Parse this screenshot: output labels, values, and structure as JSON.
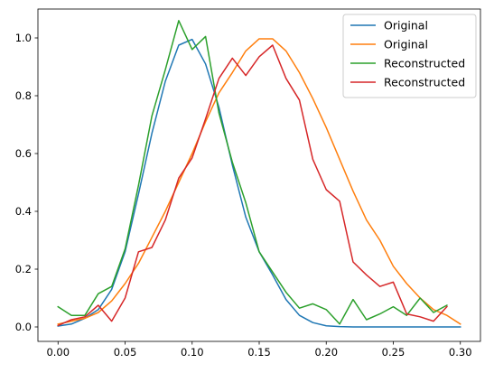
{
  "chart_data": {
    "type": "line",
    "title": "",
    "xlabel": "",
    "ylabel": "",
    "xlim": [
      -0.015,
      0.315
    ],
    "ylim": [
      -0.05,
      1.1
    ],
    "xticks": [
      0.0,
      0.05,
      0.1,
      0.15,
      0.2,
      0.25,
      0.3
    ],
    "xtick_labels": [
      "0.00",
      "0.05",
      "0.10",
      "0.15",
      "0.20",
      "0.25",
      "0.30"
    ],
    "yticks": [
      0.0,
      0.2,
      0.4,
      0.6,
      0.8,
      1.0
    ],
    "ytick_labels": [
      "0.0",
      "0.2",
      "0.4",
      "0.6",
      "0.8",
      "1.0"
    ],
    "grid": false,
    "legend_position": "top-right",
    "x": [
      0.0,
      0.01,
      0.02,
      0.03,
      0.04,
      0.05,
      0.06,
      0.07,
      0.08,
      0.09,
      0.1,
      0.11,
      0.12,
      0.13,
      0.14,
      0.15,
      0.16,
      0.17,
      0.18,
      0.19,
      0.2,
      0.21,
      0.22,
      0.23,
      0.24,
      0.25,
      0.26,
      0.27,
      0.28,
      0.29,
      0.3
    ],
    "series": [
      {
        "name": "Original",
        "color": "#1f77b4",
        "values": [
          0.003,
          0.01,
          0.03,
          0.06,
          0.13,
          0.26,
          0.46,
          0.67,
          0.85,
          0.975,
          0.995,
          0.91,
          0.76,
          0.56,
          0.38,
          0.26,
          0.18,
          0.095,
          0.04,
          0.015,
          0.004,
          0.001,
          0.0,
          0.0,
          0.0,
          0.0,
          0.0,
          0.0,
          0.0,
          0.0,
          0.0
        ]
      },
      {
        "name": "Original",
        "color": "#ff7f0e",
        "values": [
          0.01,
          0.02,
          0.03,
          0.05,
          0.09,
          0.15,
          0.22,
          0.31,
          0.4,
          0.5,
          0.6,
          0.71,
          0.81,
          0.88,
          0.955,
          0.997,
          0.997,
          0.955,
          0.88,
          0.79,
          0.69,
          0.58,
          0.47,
          0.37,
          0.3,
          0.21,
          0.15,
          0.1,
          0.06,
          0.04,
          0.01
        ]
      },
      {
        "name": "Reconstructed",
        "color": "#2ca02c",
        "values": [
          0.07,
          0.04,
          0.04,
          0.115,
          0.14,
          0.27,
          0.49,
          0.73,
          0.89,
          1.06,
          0.96,
          1.005,
          0.74,
          0.57,
          0.43,
          0.26,
          0.19,
          0.12,
          0.065,
          0.08,
          0.06,
          0.01,
          0.095,
          0.025,
          0.045,
          0.07,
          0.04,
          0.1,
          0.05,
          0.075,
          null
        ]
      },
      {
        "name": "Reconstructed",
        "color": "#d62728",
        "values": [
          0.005,
          0.025,
          0.035,
          0.075,
          0.02,
          0.1,
          0.26,
          0.275,
          0.37,
          0.515,
          0.585,
          0.72,
          0.86,
          0.93,
          0.87,
          0.935,
          0.975,
          0.86,
          0.785,
          0.58,
          0.475,
          0.435,
          0.225,
          0.18,
          0.14,
          0.155,
          0.045,
          0.035,
          0.02,
          0.07,
          null
        ]
      }
    ]
  }
}
